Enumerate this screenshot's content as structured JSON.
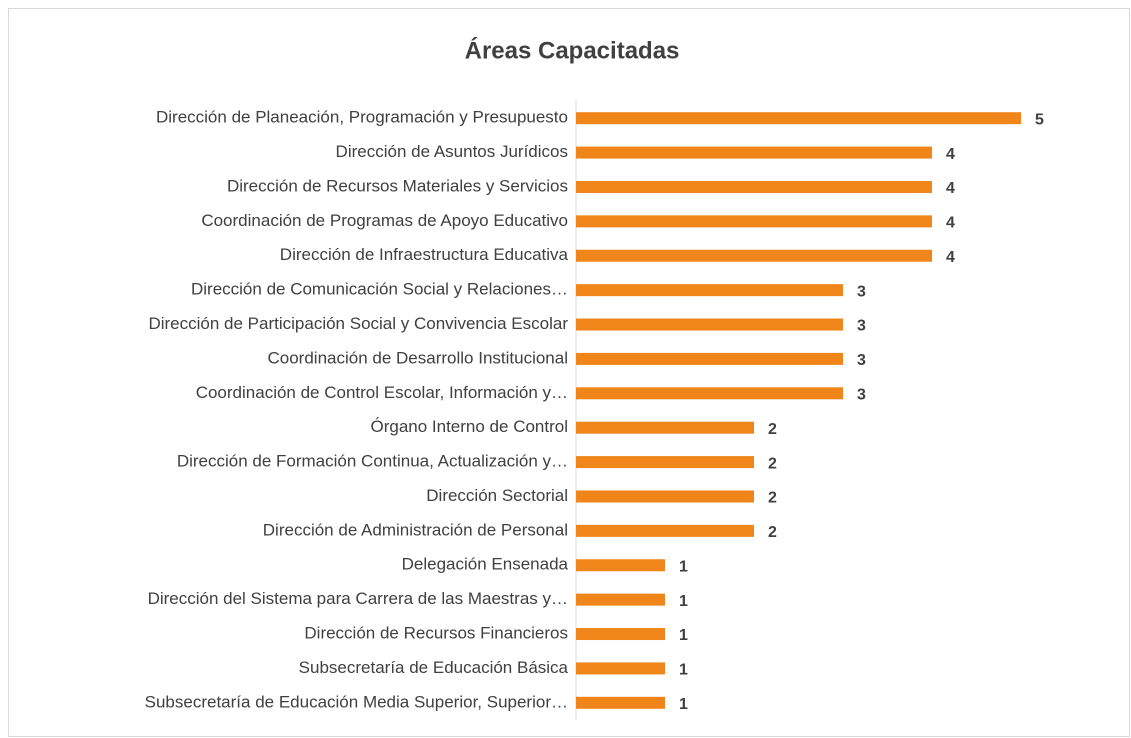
{
  "chart_data": {
    "type": "bar",
    "orientation": "horizontal",
    "title": "Áreas Capacitadas",
    "categories": [
      "Dirección de Planeación, Programación y Presupuesto",
      "Dirección de Asuntos Jurídicos",
      "Dirección de Recursos Materiales y Servicios",
      "Coordinación de Programas de Apoyo Educativo",
      "Dirección de Infraestructura Educativa",
      "Dirección de Comunicación Social y Relaciones…",
      "Dirección de Participación Social y Convivencia Escolar",
      "Coordinación de Desarrollo Institucional",
      "Coordinación de Control Escolar, Información y…",
      "Órgano Interno de Control",
      "Dirección de Formación Continua, Actualización y…",
      "Dirección Sectorial",
      "Dirección de Administración de Personal",
      "Delegación Ensenada",
      "Dirección del Sistema para Carrera de las Maestras y…",
      "Dirección de Recursos Financieros",
      "Subsecretaría de Educación Básica",
      "Subsecretaría de Educación Media Superior, Superior…"
    ],
    "values": [
      5,
      4,
      4,
      4,
      4,
      3,
      3,
      3,
      3,
      2,
      2,
      2,
      2,
      1,
      1,
      1,
      1,
      1
    ],
    "color": "#F08519"
  }
}
